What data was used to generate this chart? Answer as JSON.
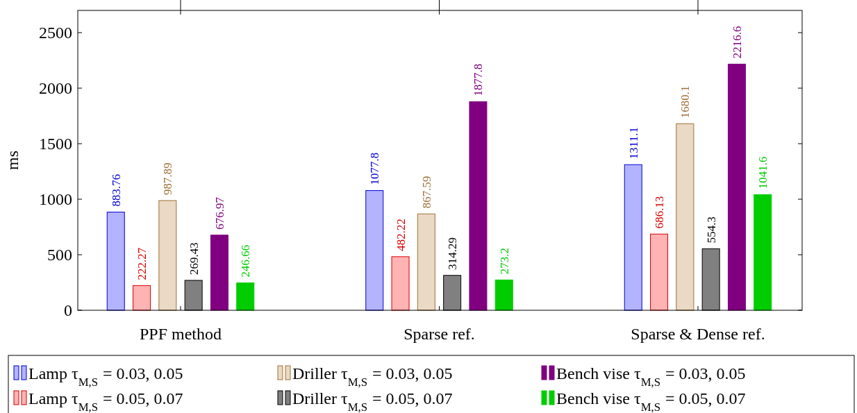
{
  "chart_data": {
    "type": "bar",
    "ylabel": "ms",
    "categories": [
      "PPF method",
      "Sparse ref.",
      "Sparse & Dense ref."
    ],
    "series": [
      {
        "name": "Lamp τ$_{M,S}$ = 0.03, 0.05",
        "color": "#b3b3ff",
        "values": [
          883.76,
          1077.8,
          1311.1
        ]
      },
      {
        "name": "Lamp τ$_{M,S}$ = 0.05, 0.07",
        "color": "#ffb3b3",
        "values": [
          222.27,
          482.22,
          686.13
        ]
      },
      {
        "name": "Driller τ$_{M,S}$ = 0.03, 0.05",
        "color": "#ead9c4",
        "values": [
          987.89,
          867.59,
          1680.1
        ]
      },
      {
        "name": "Driller τ$_{M,S}$ = 0.05, 0.07",
        "color": "#808080",
        "values": [
          269.43,
          314.29,
          554.3
        ]
      },
      {
        "name": "Bench vise τ$_{M,S}$ = 0.03, 0.05",
        "color": "#800080",
        "values": [
          676.97,
          1877.8,
          2216.6
        ]
      },
      {
        "name": "Bench vise τ$_{M,S}$ = 0.05, 0.07",
        "color": "#00cc00",
        "values": [
          246.66,
          273.2,
          1041.6
        ]
      }
    ],
    "ylim": [
      0,
      2700
    ],
    "yticks": [
      0,
      500,
      1000,
      1500,
      2000,
      2500
    ],
    "data_labels": true,
    "legend": "bottom",
    "grid": false
  }
}
